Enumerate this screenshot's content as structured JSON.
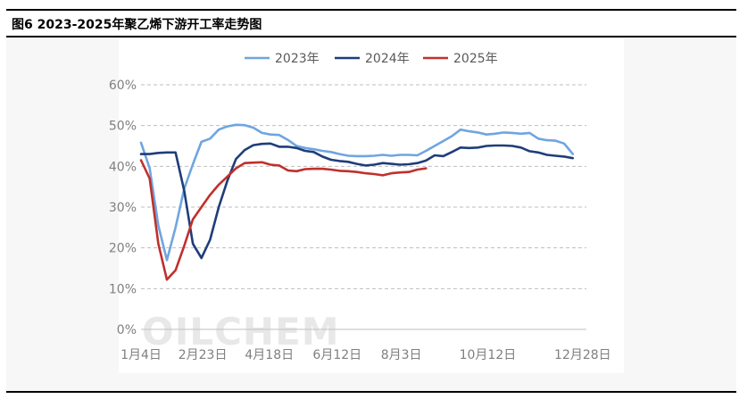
{
  "figure": {
    "title": "图6 2023-2025年聚乙烯下游开工率走势图"
  },
  "watermark": "OILCHEM",
  "chart_data": {
    "type": "line",
    "title": "",
    "xlabel": "",
    "ylabel": "",
    "x": [
      1,
      8,
      15,
      22,
      29,
      36,
      43,
      50,
      57,
      64,
      71,
      78,
      85,
      92,
      99,
      106,
      113,
      120,
      127,
      134,
      141,
      148,
      155,
      162,
      169,
      176,
      183,
      190,
      197,
      204,
      211,
      218,
      225,
      232,
      239,
      246,
      253,
      260,
      267,
      274,
      281,
      288,
      295,
      302,
      309,
      316,
      323,
      330,
      337,
      344,
      351,
      358,
      362
    ],
    "x_tick_labels": [
      "1月4日",
      "2月23日",
      "4月18日",
      "6月12日",
      "8月3日",
      "10月12日",
      "12月28日"
    ],
    "x_tick_values": [
      1,
      51,
      105,
      160,
      212,
      282,
      359
    ],
    "y_tick_labels": [
      "0%",
      "10%",
      "20%",
      "30%",
      "40%",
      "50%",
      "60%"
    ],
    "ylim": [
      0,
      60
    ],
    "y_unit": "%",
    "grid": "horizontal dashed",
    "legend_position": "top",
    "series": [
      {
        "name": "2023年",
        "color": "#6fa5e0",
        "values": [
          45.8,
          39.5,
          25.5,
          17.0,
          25.0,
          34.5,
          40.5,
          46.0,
          46.8,
          49.0,
          49.8,
          50.2,
          50.1,
          49.5,
          48.2,
          47.8,
          47.7,
          46.5,
          45.0,
          44.5,
          44.2,
          43.8,
          43.5,
          43.0,
          42.6,
          42.5,
          42.5,
          42.6,
          42.8,
          42.6,
          42.8,
          42.8,
          42.7,
          43.8,
          45.0,
          46.2,
          47.4,
          49.0,
          48.6,
          48.3,
          47.8,
          48.0,
          48.3,
          48.2,
          48.0,
          48.2,
          46.8,
          46.4,
          46.3,
          45.6,
          43.0,
          null,
          null
        ]
      },
      {
        "name": "2024年",
        "color": "#1f3d7a",
        "values": [
          43.0,
          43.0,
          43.3,
          43.4,
          43.4,
          34.0,
          21.0,
          17.5,
          22.0,
          30.0,
          36.5,
          41.8,
          44.0,
          45.2,
          45.5,
          45.6,
          44.8,
          44.8,
          44.5,
          43.8,
          43.5,
          42.4,
          41.6,
          41.3,
          41.1,
          40.6,
          40.2,
          40.4,
          40.8,
          40.6,
          40.4,
          40.5,
          40.8,
          41.4,
          42.7,
          42.5,
          43.5,
          44.6,
          44.5,
          44.6,
          45.0,
          45.1,
          45.1,
          45.0,
          44.6,
          43.7,
          43.4,
          42.8,
          42.6,
          42.4,
          42.0,
          null,
          null
        ]
      },
      {
        "name": "2025年",
        "color": "#c0302c",
        "values": [
          41.5,
          37.0,
          21.0,
          12.2,
          14.5,
          20.5,
          27.0,
          30.0,
          33.0,
          35.5,
          37.5,
          39.5,
          40.8,
          40.9,
          41.0,
          40.4,
          40.2,
          39.0,
          38.8,
          39.3,
          39.4,
          39.4,
          39.2,
          38.9,
          38.8,
          38.6,
          38.3,
          38.1,
          37.8,
          38.3,
          38.5,
          38.6,
          39.2,
          39.5,
          null,
          null,
          null,
          null,
          null,
          null,
          null,
          null,
          null,
          null,
          null,
          null,
          null,
          null,
          null,
          null,
          null,
          null,
          null
        ]
      }
    ]
  }
}
